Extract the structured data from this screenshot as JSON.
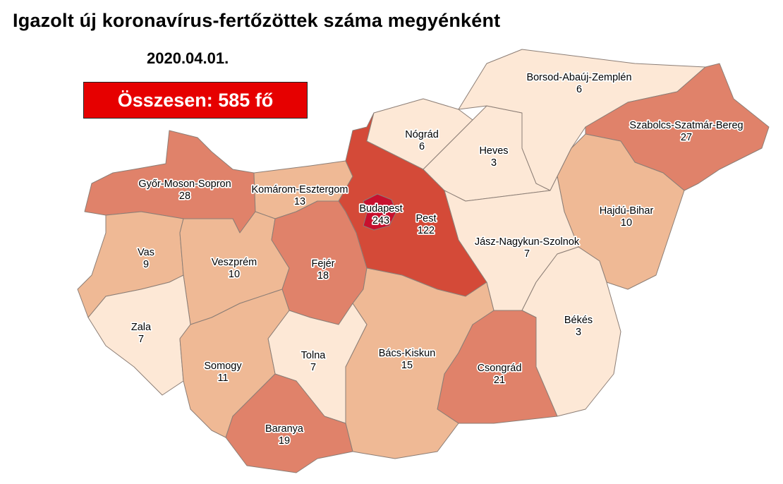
{
  "title": "Igazolt új koronavírus-fertőzöttek száma megyénként",
  "date": "2020.04.01.",
  "total_label": "Összesen: 585 fő",
  "colors": {
    "total_box": "#e60000",
    "lightest": "#fde8d6",
    "light": "#efb995",
    "medium": "#e0826a",
    "dark": "#d44a38",
    "darkest": "#c8102e"
  },
  "counties": [
    {
      "name": "Győr-Moson-Sopron",
      "value": "28",
      "color": "#e0826a"
    },
    {
      "name": "Komárom-Esztergom",
      "value": "13",
      "color": "#efb995"
    },
    {
      "name": "Vas",
      "value": "9",
      "color": "#efb995"
    },
    {
      "name": "Veszprém",
      "value": "10",
      "color": "#efb995"
    },
    {
      "name": "Zala",
      "value": "7",
      "color": "#fde8d6"
    },
    {
      "name": "Fejér",
      "value": "18",
      "color": "#e0826a"
    },
    {
      "name": "Pest",
      "value": "122",
      "color": "#d44a38"
    },
    {
      "name": "Budapest",
      "value": "243",
      "color": "#c8102e"
    },
    {
      "name": "Nógrád",
      "value": "6",
      "color": "#fde8d6"
    },
    {
      "name": "Heves",
      "value": "3",
      "color": "#fde8d6"
    },
    {
      "name": "Borsod-Abaúj-Zemplén",
      "value": "6",
      "color": "#fde8d6"
    },
    {
      "name": "Szabolcs-Szatmár-Bereg",
      "value": "27",
      "color": "#e0826a"
    },
    {
      "name": "Hajdú-Bihar",
      "value": "10",
      "color": "#efb995"
    },
    {
      "name": "Jász-Nagykun-Szolnok",
      "value": "7",
      "color": "#fde8d6"
    },
    {
      "name": "Békés",
      "value": "3",
      "color": "#fde8d6"
    },
    {
      "name": "Csongrád",
      "value": "21",
      "color": "#e0826a"
    },
    {
      "name": "Bács-Kiskun",
      "value": "15",
      "color": "#efb995"
    },
    {
      "name": "Tolna",
      "value": "7",
      "color": "#fde8d6"
    },
    {
      "name": "Somogy",
      "value": "11",
      "color": "#efb995"
    },
    {
      "name": "Baranya",
      "value": "19",
      "color": "#e0826a"
    }
  ]
}
